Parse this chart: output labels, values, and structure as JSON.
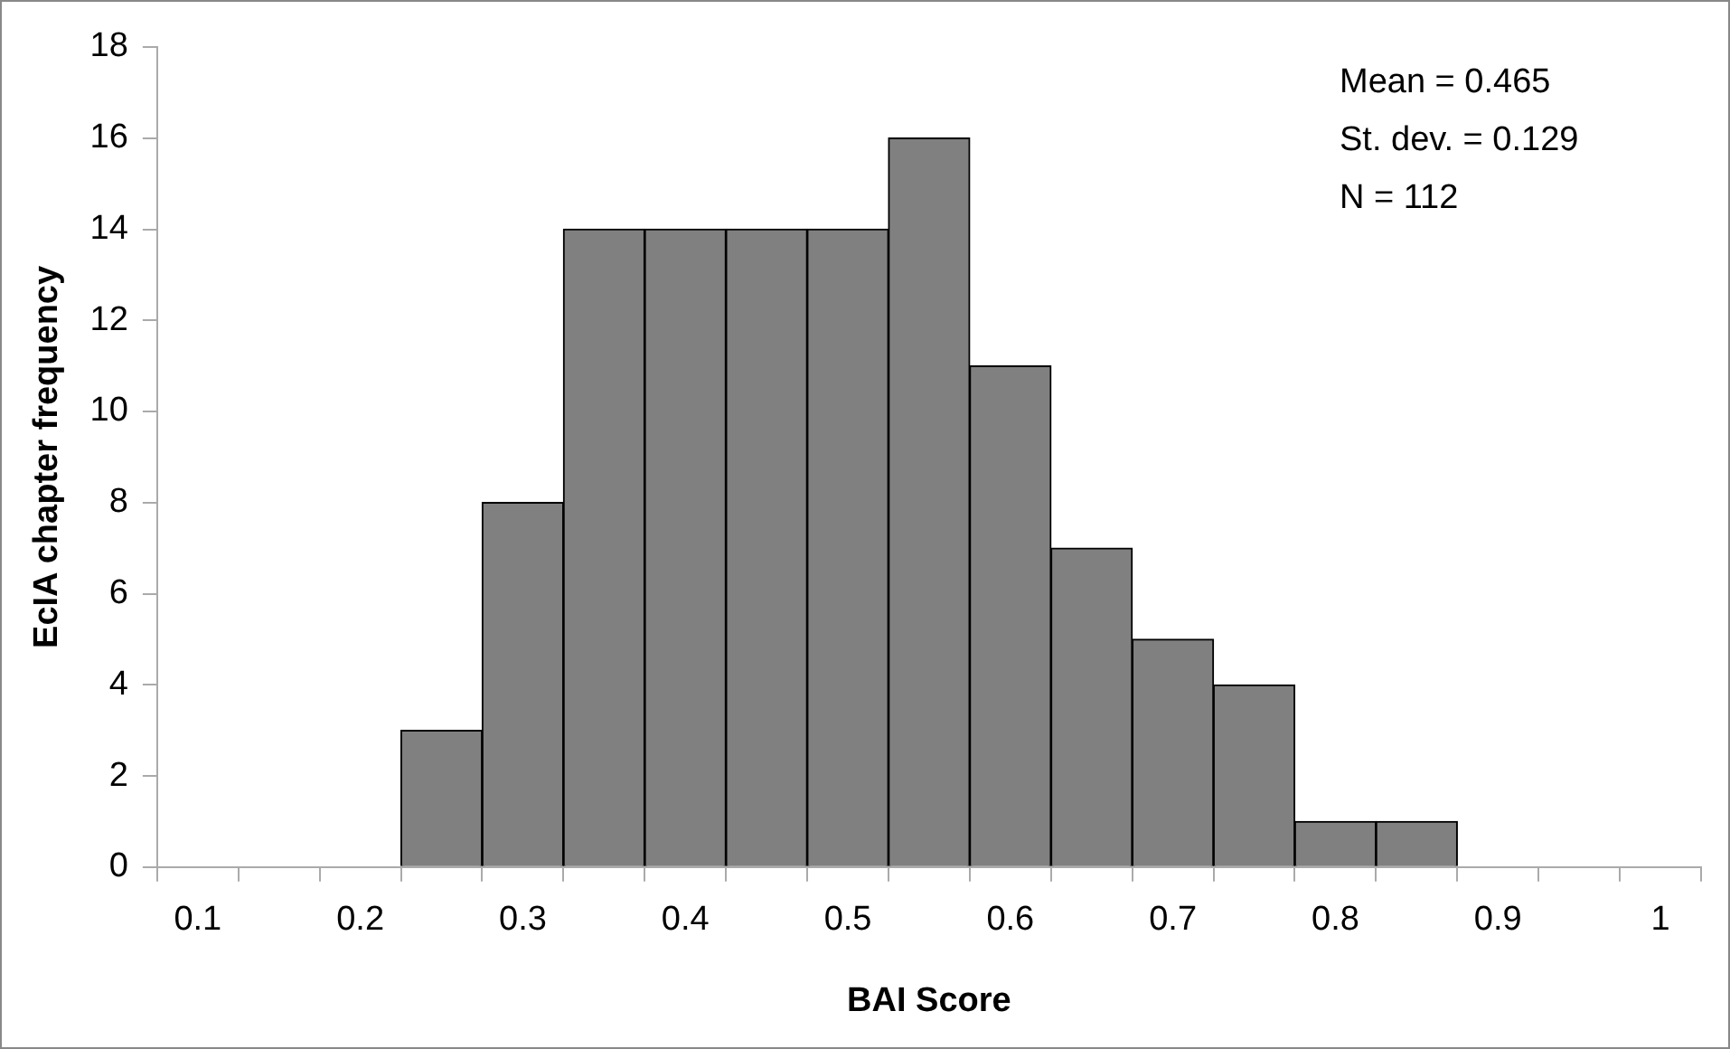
{
  "chart_data": {
    "type": "bar",
    "xlabel": "BAI Score",
    "ylabel": "EcIA chapter frequency",
    "categories": [
      "0.1",
      null,
      "0.2",
      null,
      "0.3",
      null,
      "0.4",
      null,
      "0.5",
      null,
      "0.6",
      null,
      "0.7",
      null,
      "0.8",
      null,
      "0.9",
      null,
      "1"
    ],
    "values": [
      0,
      0,
      0,
      3,
      8,
      14,
      14,
      14,
      14,
      16,
      11,
      7,
      5,
      4,
      1,
      1,
      0,
      0,
      0
    ],
    "color": "#808080",
    "ylim": [
      0,
      18
    ],
    "yticks": [
      0,
      2,
      4,
      6,
      8,
      10,
      12,
      14,
      16,
      18
    ],
    "grid": false,
    "legend": false,
    "annotations": [
      "Mean = 0.465",
      "St. dev. = 0.129",
      "N = 112"
    ]
  }
}
